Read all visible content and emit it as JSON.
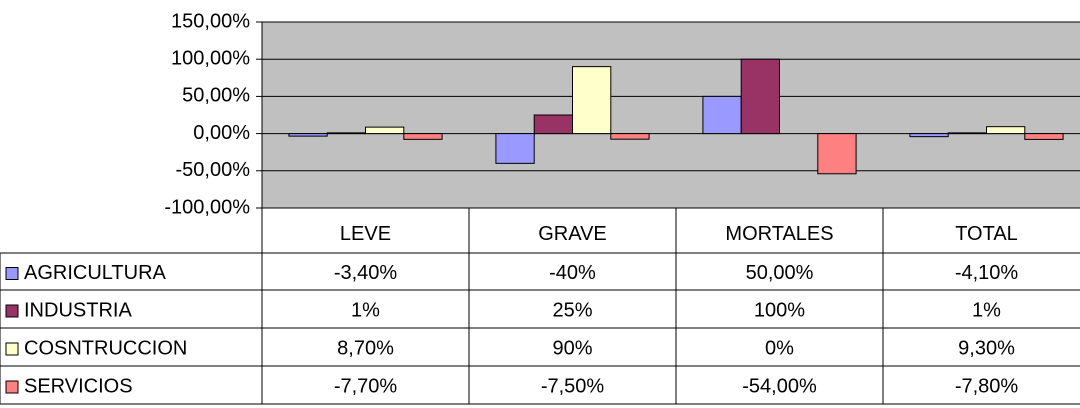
{
  "chart_data": {
    "type": "bar",
    "categories": [
      "LEVE",
      "GRAVE",
      "MORTALES",
      "TOTAL"
    ],
    "series": [
      {
        "name": "AGRICULTURA",
        "color": "#9999ff",
        "values": [
          -3.4,
          -40,
          50,
          -4.1
        ],
        "value_labels": [
          "-3,40%",
          "-40%",
          "50,00%",
          "-4,10%"
        ]
      },
      {
        "name": "INDUSTRIA",
        "color": "#993366",
        "values": [
          1,
          25,
          100,
          1
        ],
        "value_labels": [
          "1%",
          "25%",
          "100%",
          "1%"
        ]
      },
      {
        "name": "COSNTRUCCION",
        "color": "#ffffcc",
        "values": [
          8.7,
          90,
          0,
          9.3
        ],
        "value_labels": [
          "8,70%",
          "90%",
          "0%",
          "9,30%"
        ]
      },
      {
        "name": "SERVICIOS",
        "color": "#ff8080",
        "values": [
          -7.7,
          -7.5,
          -54,
          -7.8
        ],
        "value_labels": [
          "-7,70%",
          "-7,50%",
          "-54,00%",
          "-7,80%"
        ]
      }
    ],
    "ylim": [
      -100,
      150
    ],
    "yticks": [
      {
        "value": -100,
        "label": "-100,00%"
      },
      {
        "value": -50,
        "label": "-50,00%"
      },
      {
        "value": 0,
        "label": "0,00%"
      },
      {
        "value": 50,
        "label": "50,00%"
      },
      {
        "value": 100,
        "label": "100,00%"
      },
      {
        "value": 150,
        "label": "150,00%"
      }
    ],
    "grid": true
  }
}
